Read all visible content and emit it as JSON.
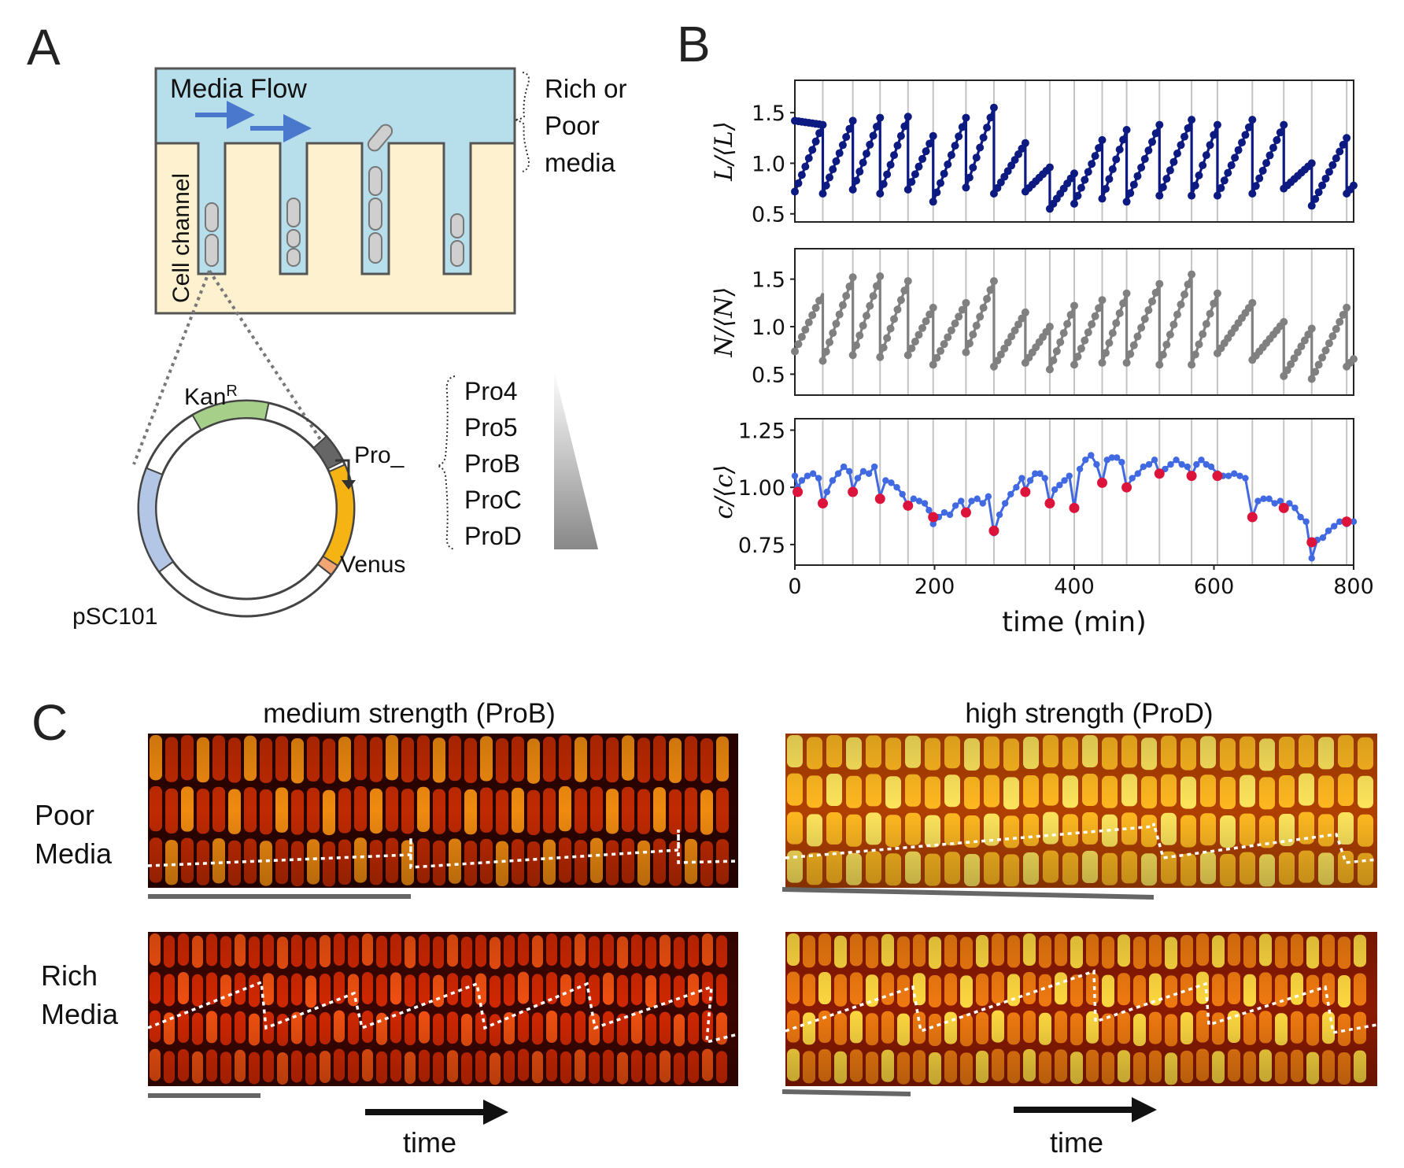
{
  "panels": {
    "a": "A",
    "b": "B",
    "c": "C"
  },
  "panel_a": {
    "media_flow": "Media Flow",
    "media_type": [
      "Rich or",
      "Poor",
      "media"
    ],
    "cell_channel": "Cell channel",
    "plasmid": {
      "kan": "Kan",
      "kan_sup": "R",
      "promoter": "Pro_",
      "reporter": "Venus",
      "origin": "pSC101"
    },
    "promoters": [
      "Pro4",
      "Pro5",
      "ProB",
      "ProC",
      "ProD"
    ],
    "colors": {
      "media": "#b7dfeb",
      "pdms": "#fdf1cf",
      "arrow": "#4a78cc",
      "cell": "#cfcfcf",
      "kan": "#a6d08a",
      "venus": "#f6b314",
      "pro": "#666666",
      "ori": "#b3c6e6",
      "rbs": "#f4a574"
    }
  },
  "chart_data": [
    {
      "type": "line",
      "title": "",
      "ylabel": "L/⟨L⟩",
      "xlabel": "",
      "xlim": [
        0,
        800
      ],
      "ylim": [
        0.42,
        1.82
      ],
      "yticks": [
        "0.5",
        "1.0",
        "1.5"
      ],
      "ytick_values": [
        0.5,
        1.0,
        1.5
      ],
      "color": "#0c1a82",
      "division_times": [
        0,
        40,
        83,
        122,
        162,
        198,
        245,
        285,
        330,
        365,
        400,
        440,
        475,
        522,
        568,
        605,
        655,
        700,
        740,
        790
      ],
      "segments": [
        {
          "t0": 0,
          "t1": 40,
          "start": 1.42,
          "end": 1.38
        },
        {
          "t0": 0,
          "t1": 40,
          "start": 0.72,
          "end": 1.38
        },
        {
          "t0": 40,
          "t1": 83,
          "start": 0.7,
          "end": 1.42
        },
        {
          "t0": 83,
          "t1": 122,
          "start": 0.74,
          "end": 1.45
        },
        {
          "t0": 122,
          "t1": 162,
          "start": 0.7,
          "end": 1.46
        },
        {
          "t0": 162,
          "t1": 198,
          "start": 0.74,
          "end": 1.27
        },
        {
          "t0": 198,
          "t1": 245,
          "start": 0.62,
          "end": 1.45
        },
        {
          "t0": 245,
          "t1": 285,
          "start": 0.76,
          "end": 1.55
        },
        {
          "t0": 285,
          "t1": 330,
          "start": 0.7,
          "end": 1.2
        },
        {
          "t0": 330,
          "t1": 365,
          "start": 0.72,
          "end": 0.96
        },
        {
          "t0": 365,
          "t1": 400,
          "start": 0.55,
          "end": 0.9
        },
        {
          "t0": 400,
          "t1": 440,
          "start": 0.6,
          "end": 1.23
        },
        {
          "t0": 440,
          "t1": 475,
          "start": 0.65,
          "end": 1.33
        },
        {
          "t0": 475,
          "t1": 522,
          "start": 0.62,
          "end": 1.38
        },
        {
          "t0": 522,
          "t1": 568,
          "start": 0.68,
          "end": 1.43
        },
        {
          "t0": 568,
          "t1": 605,
          "start": 0.68,
          "end": 1.38
        },
        {
          "t0": 605,
          "t1": 655,
          "start": 0.68,
          "end": 1.43
        },
        {
          "t0": 655,
          "t1": 700,
          "start": 0.7,
          "end": 1.38
        },
        {
          "t0": 700,
          "t1": 740,
          "start": 0.75,
          "end": 1.0
        },
        {
          "t0": 740,
          "t1": 790,
          "start": 0.58,
          "end": 1.25
        },
        {
          "t0": 790,
          "t1": 800,
          "start": 0.7,
          "end": 0.78
        }
      ]
    },
    {
      "type": "line",
      "title": "",
      "ylabel": "N/⟨N⟩",
      "xlabel": "",
      "xlim": [
        0,
        800
      ],
      "ylim": [
        0.28,
        1.82
      ],
      "yticks": [
        "0.5",
        "1.0",
        "1.5"
      ],
      "ytick_values": [
        0.5,
        1.0,
        1.5
      ],
      "color": "#808080",
      "division_times": [
        0,
        40,
        83,
        122,
        162,
        198,
        245,
        285,
        330,
        365,
        400,
        440,
        475,
        522,
        568,
        605,
        655,
        700,
        740,
        790
      ],
      "segments": [
        {
          "t0": 0,
          "t1": 40,
          "start": 0.74,
          "end": 1.35
        },
        {
          "t0": 40,
          "t1": 83,
          "start": 0.64,
          "end": 1.52
        },
        {
          "t0": 83,
          "t1": 122,
          "start": 0.7,
          "end": 1.53
        },
        {
          "t0": 122,
          "t1": 162,
          "start": 0.68,
          "end": 1.48
        },
        {
          "t0": 162,
          "t1": 198,
          "start": 0.7,
          "end": 1.2
        },
        {
          "t0": 198,
          "t1": 245,
          "start": 0.6,
          "end": 1.25
        },
        {
          "t0": 245,
          "t1": 285,
          "start": 0.73,
          "end": 1.48
        },
        {
          "t0": 285,
          "t1": 330,
          "start": 0.58,
          "end": 1.15
        },
        {
          "t0": 330,
          "t1": 365,
          "start": 0.62,
          "end": 1.0
        },
        {
          "t0": 365,
          "t1": 400,
          "start": 0.55,
          "end": 1.22
        },
        {
          "t0": 400,
          "t1": 440,
          "start": 0.6,
          "end": 1.28
        },
        {
          "t0": 440,
          "t1": 475,
          "start": 0.62,
          "end": 1.35
        },
        {
          "t0": 475,
          "t1": 522,
          "start": 0.62,
          "end": 1.45
        },
        {
          "t0": 522,
          "t1": 568,
          "start": 0.6,
          "end": 1.55
        },
        {
          "t0": 568,
          "t1": 605,
          "start": 0.6,
          "end": 1.35
        },
        {
          "t0": 605,
          "t1": 655,
          "start": 0.72,
          "end": 1.25
        },
        {
          "t0": 655,
          "t1": 700,
          "start": 0.65,
          "end": 1.05
        },
        {
          "t0": 700,
          "t1": 740,
          "start": 0.48,
          "end": 0.98
        },
        {
          "t0": 740,
          "t1": 790,
          "start": 0.45,
          "end": 1.2
        },
        {
          "t0": 790,
          "t1": 800,
          "start": 0.58,
          "end": 0.66
        }
      ]
    },
    {
      "type": "line",
      "title": "",
      "ylabel": "c/⟨c⟩",
      "xlabel": "time (min)",
      "xlim": [
        0,
        800
      ],
      "ylim": [
        0.66,
        1.3
      ],
      "yticks": [
        "0.75",
        "1.00",
        "1.25"
      ],
      "ytick_values": [
        0.75,
        1.0,
        1.25
      ],
      "xticks": [
        "0",
        "200",
        "400",
        "600",
        "800"
      ],
      "xtick_values": [
        0,
        200,
        400,
        600,
        800
      ],
      "color": "#4169e1",
      "marker_color": "#dc143c",
      "division_times": [
        0,
        40,
        83,
        122,
        162,
        198,
        245,
        285,
        330,
        365,
        400,
        440,
        475,
        522,
        568,
        605,
        655,
        700,
        740,
        790
      ],
      "trace": [
        [
          0,
          1.05
        ],
        [
          4,
          1.0
        ],
        [
          10,
          1.03
        ],
        [
          18,
          1.05
        ],
        [
          26,
          1.06
        ],
        [
          34,
          1.04
        ],
        [
          40,
          0.93
        ],
        [
          46,
          0.98
        ],
        [
          54,
          1.03
        ],
        [
          62,
          1.06
        ],
        [
          70,
          1.09
        ],
        [
          78,
          1.07
        ],
        [
          83,
          0.99
        ],
        [
          90,
          1.04
        ],
        [
          98,
          1.07
        ],
        [
          106,
          1.06
        ],
        [
          114,
          1.09
        ],
        [
          122,
          0.96
        ],
        [
          130,
          1.03
        ],
        [
          138,
          1.02
        ],
        [
          146,
          1.0
        ],
        [
          154,
          0.97
        ],
        [
          162,
          0.92
        ],
        [
          170,
          0.95
        ],
        [
          178,
          0.94
        ],
        [
          186,
          0.93
        ],
        [
          192,
          0.9
        ],
        [
          198,
          0.84
        ],
        [
          206,
          0.87
        ],
        [
          214,
          0.89
        ],
        [
          222,
          0.88
        ],
        [
          230,
          0.92
        ],
        [
          238,
          0.94
        ],
        [
          245,
          0.89
        ],
        [
          253,
          0.94
        ],
        [
          261,
          0.95
        ],
        [
          269,
          0.93
        ],
        [
          277,
          0.96
        ],
        [
          285,
          0.8
        ],
        [
          293,
          0.88
        ],
        [
          301,
          0.93
        ],
        [
          309,
          0.97
        ],
        [
          317,
          1.0
        ],
        [
          325,
          1.04
        ],
        [
          330,
          0.99
        ],
        [
          337,
          1.03
        ],
        [
          344,
          1.06
        ],
        [
          351,
          1.06
        ],
        [
          358,
          1.04
        ],
        [
          365,
          0.93
        ],
        [
          372,
          0.99
        ],
        [
          379,
          1.01
        ],
        [
          386,
          1.03
        ],
        [
          393,
          1.05
        ],
        [
          400,
          0.91
        ],
        [
          408,
          1.08
        ],
        [
          416,
          1.12
        ],
        [
          424,
          1.14
        ],
        [
          432,
          1.1
        ],
        [
          440,
          1.02
        ],
        [
          447,
          1.12
        ],
        [
          454,
          1.13
        ],
        [
          461,
          1.13
        ],
        [
          468,
          1.11
        ],
        [
          475,
          1.0
        ],
        [
          483,
          1.04
        ],
        [
          491,
          1.06
        ],
        [
          499,
          1.09
        ],
        [
          507,
          1.1
        ],
        [
          515,
          1.12
        ],
        [
          522,
          1.06
        ],
        [
          530,
          1.08
        ],
        [
          538,
          1.1
        ],
        [
          546,
          1.12
        ],
        [
          554,
          1.1
        ],
        [
          562,
          1.09
        ],
        [
          568,
          1.05
        ],
        [
          575,
          1.1
        ],
        [
          582,
          1.12
        ],
        [
          589,
          1.1
        ],
        [
          596,
          1.09
        ],
        [
          605,
          1.06
        ],
        [
          613,
          1.05
        ],
        [
          621,
          1.05
        ],
        [
          629,
          1.06
        ],
        [
          637,
          1.05
        ],
        [
          645,
          1.04
        ],
        [
          655,
          0.87
        ],
        [
          663,
          0.94
        ],
        [
          671,
          0.95
        ],
        [
          679,
          0.95
        ],
        [
          687,
          0.93
        ],
        [
          695,
          0.94
        ],
        [
          700,
          0.91
        ],
        [
          708,
          0.93
        ],
        [
          716,
          0.91
        ],
        [
          724,
          0.87
        ],
        [
          732,
          0.85
        ],
        [
          740,
          0.69
        ],
        [
          748,
          0.77
        ],
        [
          756,
          0.78
        ],
        [
          764,
          0.81
        ],
        [
          772,
          0.83
        ],
        [
          780,
          0.85
        ],
        [
          790,
          0.84
        ],
        [
          800,
          0.85
        ]
      ],
      "division_points": [
        [
          4,
          0.98
        ],
        [
          40,
          0.93
        ],
        [
          83,
          0.98
        ],
        [
          122,
          0.95
        ],
        [
          162,
          0.92
        ],
        [
          198,
          0.87
        ],
        [
          245,
          0.89
        ],
        [
          285,
          0.81
        ],
        [
          330,
          0.98
        ],
        [
          365,
          0.93
        ],
        [
          400,
          0.91
        ],
        [
          440,
          1.02
        ],
        [
          475,
          1.0
        ],
        [
          522,
          1.06
        ],
        [
          568,
          1.05
        ],
        [
          605,
          1.05
        ],
        [
          655,
          0.87
        ],
        [
          700,
          0.91
        ],
        [
          740,
          0.76
        ],
        [
          790,
          0.85
        ]
      ]
    }
  ],
  "panel_c": {
    "col_left": "medium strength (ProB)",
    "col_right": "high strength (ProD)",
    "row_top": [
      "Poor",
      "Media"
    ],
    "row_bottom": [
      "Rich",
      "Media"
    ],
    "time_label": "time",
    "colors": {
      "kymo_dark": "#2b0300",
      "kymo_mid": "#e04200",
      "kymo_bright": "#ffe55c",
      "scalebar": "#666666",
      "arrow": "#111111"
    }
  }
}
